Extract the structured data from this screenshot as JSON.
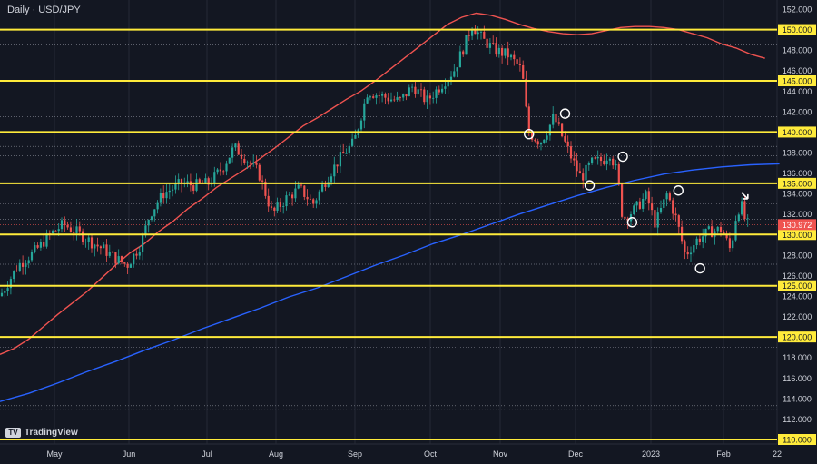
{
  "chart_data": {
    "type": "candlestick",
    "title": "Daily · USD/JPY",
    "ylim": [
      109.5,
      152.5
    ],
    "x_ticks": [
      "May",
      "Jun",
      "Jul",
      "Aug",
      "Sep",
      "Oct",
      "Nov",
      "Dec",
      "2023",
      "Feb",
      "22"
    ],
    "y_ticks": [
      "152.000",
      "150.000",
      "148.000",
      "146.000",
      "145.000",
      "144.000",
      "142.000",
      "140.000",
      "138.000",
      "136.000",
      "135.000",
      "134.000",
      "132.000",
      "130.000",
      "128.000",
      "126.000",
      "125.000",
      "124.000",
      "122.000",
      "120.000",
      "118.000",
      "116.000",
      "114.000",
      "112.000",
      "110.000"
    ],
    "highlighted_ticks": [
      "150.000",
      "145.000",
      "140.000",
      "135.000",
      "130.000",
      "125.000",
      "120.000",
      "110.000"
    ],
    "levels": [
      150,
      145,
      140,
      135,
      130,
      125,
      120,
      110
    ],
    "dotted_levels": [
      148.5,
      147.6,
      141.5,
      138.6,
      137.7,
      133.0,
      131.5,
      127.1,
      119.0,
      113.3,
      112.9
    ],
    "last_price": "130.972",
    "ma_red": [
      [
        0,
        118.3
      ],
      [
        20,
        118.9
      ],
      [
        40,
        119.8
      ],
      [
        60,
        121.0
      ],
      [
        80,
        122.2
      ],
      [
        100,
        123.3
      ],
      [
        120,
        124.4
      ],
      [
        140,
        125.7
      ],
      [
        160,
        127.0
      ],
      [
        180,
        128.2
      ],
      [
        200,
        129.1
      ],
      [
        220,
        130.3
      ],
      [
        240,
        131.3
      ],
      [
        260,
        132.5
      ],
      [
        280,
        133.5
      ],
      [
        300,
        134.6
      ],
      [
        320,
        135.5
      ],
      [
        340,
        136.4
      ],
      [
        360,
        137.4
      ],
      [
        380,
        138.4
      ],
      [
        400,
        139.5
      ],
      [
        420,
        140.6
      ],
      [
        440,
        141.4
      ],
      [
        460,
        142.3
      ],
      [
        480,
        143.2
      ],
      [
        500,
        144.0
      ],
      [
        520,
        145.0
      ],
      [
        540,
        146.1
      ],
      [
        560,
        147.2
      ],
      [
        580,
        148.3
      ],
      [
        600,
        149.4
      ],
      [
        620,
        150.5
      ],
      [
        640,
        151.2
      ],
      [
        660,
        151.6
      ],
      [
        680,
        151.4
      ],
      [
        700,
        151.0
      ],
      [
        720,
        150.5
      ],
      [
        740,
        150.1
      ],
      [
        760,
        149.8
      ],
      [
        780,
        149.6
      ],
      [
        800,
        149.5
      ],
      [
        820,
        149.6
      ],
      [
        840,
        149.9
      ],
      [
        860,
        150.2
      ],
      [
        880,
        150.3
      ],
      [
        900,
        150.3
      ],
      [
        920,
        150.2
      ],
      [
        940,
        150.0
      ],
      [
        960,
        149.6
      ],
      [
        980,
        149.2
      ],
      [
        1000,
        148.6
      ],
      [
        1020,
        148.2
      ],
      [
        1040,
        147.6
      ],
      [
        1060,
        147.2
      ]
    ],
    "ma_blue": [
      [
        0,
        113.7
      ],
      [
        40,
        114.5
      ],
      [
        80,
        115.5
      ],
      [
        120,
        116.6
      ],
      [
        160,
        117.6
      ],
      [
        200,
        118.7
      ],
      [
        240,
        119.7
      ],
      [
        280,
        120.8
      ],
      [
        320,
        121.8
      ],
      [
        360,
        122.8
      ],
      [
        400,
        123.9
      ],
      [
        440,
        124.8
      ],
      [
        480,
        125.9
      ],
      [
        520,
        127.0
      ],
      [
        560,
        128.0
      ],
      [
        600,
        129.1
      ],
      [
        640,
        130.0
      ],
      [
        680,
        131.0
      ],
      [
        720,
        132.0
      ],
      [
        760,
        132.9
      ],
      [
        800,
        133.8
      ],
      [
        840,
        134.6
      ],
      [
        880,
        135.3
      ],
      [
        920,
        135.9
      ],
      [
        960,
        136.3
      ],
      [
        1000,
        136.6
      ],
      [
        1040,
        136.8
      ],
      [
        1080,
        136.9
      ]
    ],
    "markers": [
      {
        "x": 733,
        "y": 139.8,
        "type": "circle"
      },
      {
        "x": 783,
        "y": 141.8,
        "type": "circle"
      },
      {
        "x": 817,
        "y": 134.8,
        "type": "circle"
      },
      {
        "x": 863,
        "y": 137.6,
        "type": "circle"
      },
      {
        "x": 876,
        "y": 131.2,
        "type": "circle"
      },
      {
        "x": 940,
        "y": 134.3,
        "type": "circle"
      },
      {
        "x": 970,
        "y": 126.7,
        "type": "circle"
      },
      {
        "x": 1035,
        "y": 133.4,
        "type": "arrow"
      }
    ]
  },
  "branding": {
    "logo_text": "TradingView"
  },
  "colors": {
    "background": "#131722",
    "level": "#ffeb3b",
    "up": "#26a69a",
    "down": "#ef5350",
    "ma_red": "#ef5350",
    "ma_blue": "#2962ff",
    "grid": "#252a35",
    "text": "#d1d4dc"
  }
}
